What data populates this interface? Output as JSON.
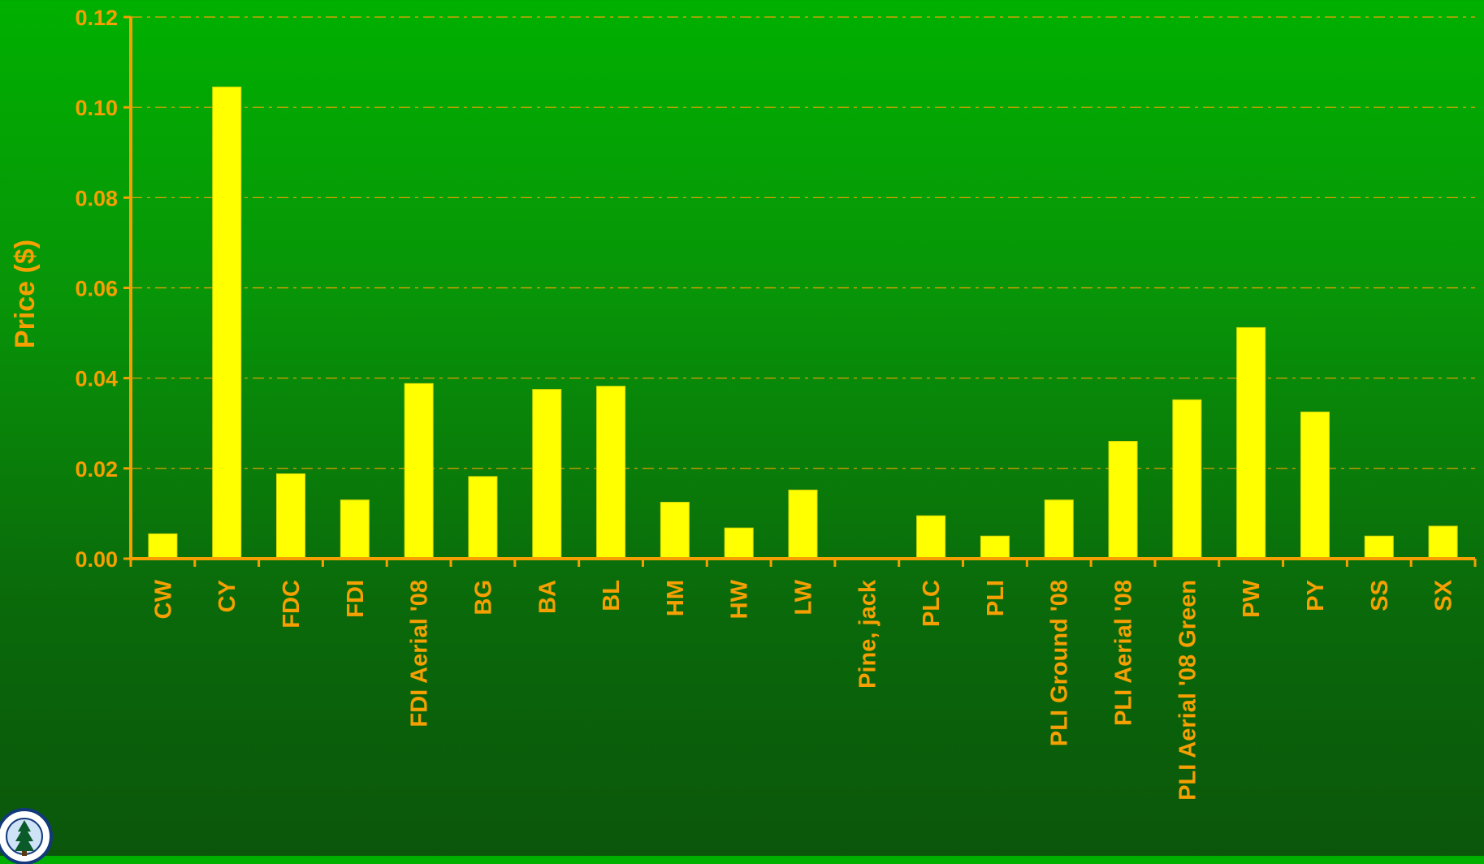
{
  "chart_data": {
    "type": "bar",
    "title": "",
    "xlabel": "",
    "ylabel": "Price ($)",
    "ylim": [
      0,
      0.12
    ],
    "yticks": [
      "0.00",
      "0.02",
      "0.04",
      "0.06",
      "0.08",
      "0.10",
      "0.12"
    ],
    "grid": true,
    "categories": [
      "CW",
      "CY",
      "FDC",
      "FDI",
      "FDI Aerial '08",
      "BG",
      "BA",
      "BL",
      "HM",
      "HW",
      "LW",
      "Pine, jack",
      "PLC",
      "PLI",
      "PLI Ground '08",
      "PLI Aerial '08",
      "PLI Aerial '08 Green",
      "PW",
      "PY",
      "SS",
      "SX"
    ],
    "values": [
      0.0055,
      0.1045,
      0.0188,
      0.013,
      0.0388,
      0.0182,
      0.0375,
      0.0382,
      0.0125,
      0.0068,
      0.0152,
      0,
      0.0095,
      0.005,
      0.013,
      0.026,
      0.0352,
      0.0512,
      0.0325,
      0.005,
      0.0072
    ]
  },
  "colors": {
    "bar": "#ffff00",
    "bar_edge": "#d8d800",
    "axis": "#f5a000",
    "label": "#f5a000",
    "grid": "#f5a000"
  },
  "logo": {
    "icon": "forest-service-badge-icon"
  }
}
